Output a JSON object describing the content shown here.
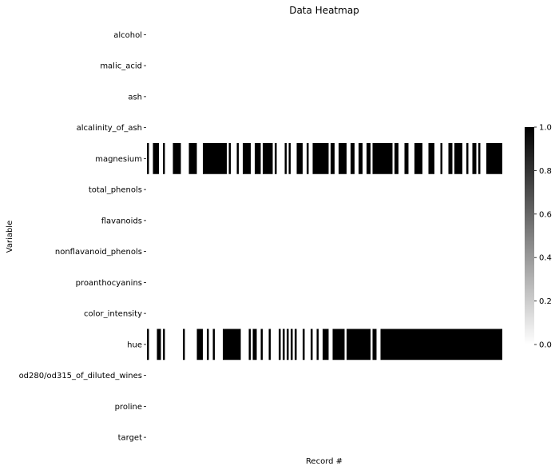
{
  "chart_data": {
    "type": "heatmap",
    "title": "Data Heatmap",
    "xlabel": "Record #",
    "ylabel": "Variable",
    "rows": [
      "alcohol",
      "malic_acid",
      "ash",
      "alcalinity_of_ash",
      "magnesium",
      "total_phenols",
      "flavanoids",
      "nonflavanoid_phenols",
      "proanthocyanins",
      "color_intensity",
      "hue",
      "od280/od315_of_diluted_wines",
      "proline",
      "target"
    ],
    "n_records": 178,
    "value_range": [
      0,
      1
    ],
    "colormap": [
      "#ffffff",
      "#000000"
    ],
    "colorbar_ticks": [
      "0.0",
      "0.2",
      "0.4",
      "0.6",
      "0.8",
      "1.0"
    ],
    "grid": false,
    "colorbar_position": "right",
    "cells_equal_one": {
      "magnesium": [
        [
          0,
          1
        ],
        [
          3,
          6
        ],
        [
          8,
          9
        ],
        [
          13,
          17
        ],
        [
          21,
          25
        ],
        [
          28,
          40
        ],
        [
          41,
          42
        ],
        [
          45,
          46
        ],
        [
          48,
          52
        ],
        [
          54,
          57
        ],
        [
          58,
          63
        ],
        [
          64,
          65
        ],
        [
          69,
          70
        ],
        [
          71,
          72
        ],
        [
          75,
          78
        ],
        [
          80,
          81
        ],
        [
          83,
          91
        ],
        [
          92,
          94
        ],
        [
          96,
          100
        ],
        [
          102,
          104
        ],
        [
          106,
          108
        ],
        [
          110,
          112
        ],
        [
          113,
          123
        ],
        [
          124,
          126
        ],
        [
          129,
          131
        ],
        [
          134,
          138
        ],
        [
          141,
          144
        ],
        [
          147,
          148
        ],
        [
          151,
          153
        ],
        [
          154,
          158
        ],
        [
          160,
          161
        ],
        [
          163,
          165
        ],
        [
          166,
          167
        ],
        [
          170,
          178
        ]
      ],
      "hue": [
        [
          0,
          1
        ],
        [
          5,
          7
        ],
        [
          8,
          9
        ],
        [
          18,
          19
        ],
        [
          25,
          28
        ],
        [
          30,
          31
        ],
        [
          33,
          34
        ],
        [
          38,
          47
        ],
        [
          51,
          52
        ],
        [
          53,
          55
        ],
        [
          57,
          58
        ],
        [
          61,
          62
        ],
        [
          66,
          67
        ],
        [
          68,
          69
        ],
        [
          70,
          71
        ],
        [
          72,
          73
        ],
        [
          74,
          75
        ],
        [
          78,
          79
        ],
        [
          82,
          83
        ],
        [
          85,
          86
        ],
        [
          88,
          90
        ],
        [
          90,
          91
        ],
        [
          93,
          96
        ],
        [
          96,
          99
        ],
        [
          100,
          101
        ],
        [
          101,
          112
        ],
        [
          113,
          115
        ],
        [
          117,
          178
        ]
      ]
    }
  }
}
